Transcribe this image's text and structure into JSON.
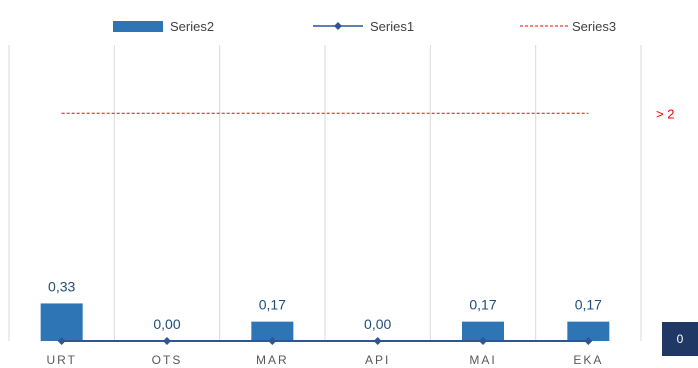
{
  "chart_data": {
    "type": "bar",
    "categories": [
      "URT",
      "OTS",
      "MAR",
      "API",
      "MAI",
      "EKA"
    ],
    "series": [
      {
        "name": "Series2",
        "kind": "bar",
        "color": "#2e75b6",
        "values": [
          0.33,
          0.0,
          0.17,
          0.0,
          0.17,
          0.17
        ],
        "labels": [
          "0,33",
          "0,00",
          "0,17",
          "0,00",
          "0,17",
          "0,17"
        ]
      },
      {
        "name": "Series1",
        "kind": "line-marker",
        "color": "#2f5597",
        "values": [
          0,
          0,
          0,
          0,
          0,
          0
        ]
      },
      {
        "name": "Series3",
        "kind": "dashed-line",
        "color": "#ff0000",
        "values": [
          2,
          2,
          2,
          2,
          2,
          2
        ]
      }
    ],
    "threshold_label": "> 2",
    "axis_badge": "0",
    "ylim": [
      0,
      2.6
    ],
    "grid": "vertical",
    "legend_position": "top"
  }
}
